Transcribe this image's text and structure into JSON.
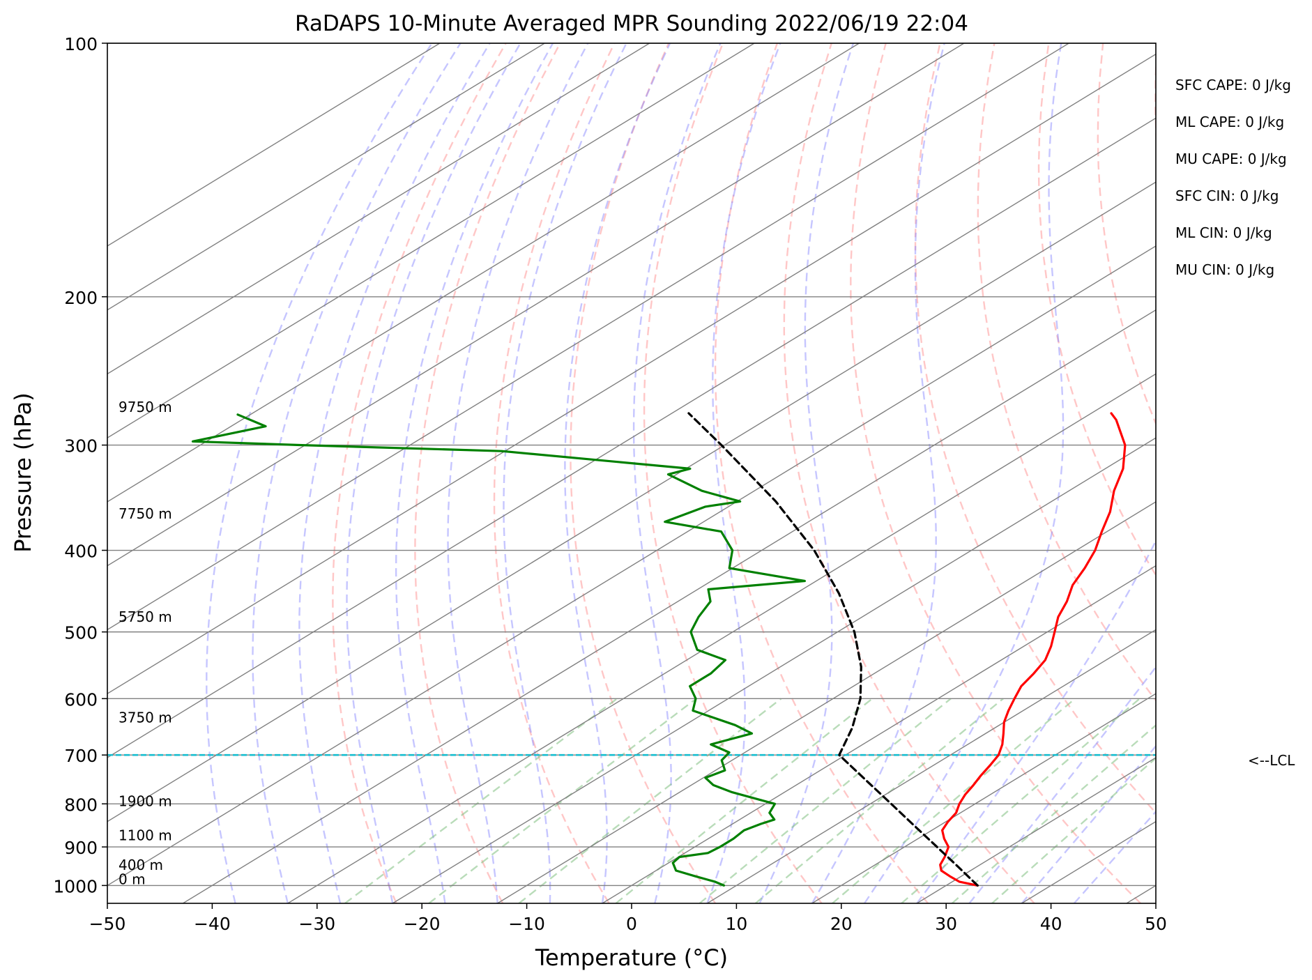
{
  "chart_data": {
    "type": "line",
    "title": "RaDAPS 10-Minute Averaged MPR Sounding 2022/06/19 22:04",
    "xlabel": "Temperature (°C)",
    "ylabel": "Pressure (hPa)",
    "xlim": [
      -50,
      50
    ],
    "ylim": [
      1050,
      100
    ],
    "y_scale": "log",
    "grid": true,
    "x_ticks": [
      "−50",
      "−40",
      "−30",
      "−20",
      "−10",
      "0",
      "10",
      "20",
      "30",
      "40",
      "50"
    ],
    "y_ticks": [
      {
        "p": 100,
        "label": "100"
      },
      {
        "p": 200,
        "label": "200"
      },
      {
        "p": 300,
        "label": "300"
      },
      {
        "p": 400,
        "label": "400"
      },
      {
        "p": 500,
        "label": "500"
      },
      {
        "p": 600,
        "label": "600"
      },
      {
        "p": 700,
        "label": "700"
      },
      {
        "p": 800,
        "label": "800"
      },
      {
        "p": 900,
        "label": "900"
      },
      {
        "p": 1000,
        "label": "1000"
      }
    ],
    "skew_degC_per_log": 57.2,
    "colors": {
      "temperature": "#ff0000",
      "dewpoint": "#008000",
      "parcel": "#000000",
      "lcl_line": "#17becf",
      "isotherm": "#808080",
      "dry_adiabat": "#ff9999",
      "moist_adiabat": "#8080ff",
      "mixing_ratio": "#80c080"
    },
    "series": [
      {
        "key": "temperature",
        "points": [
          [
            1000,
            33.0
          ],
          [
            990,
            30.7
          ],
          [
            975,
            28.9
          ],
          [
            960,
            27.2
          ],
          [
            945,
            26.2
          ],
          [
            925,
            25.4
          ],
          [
            900,
            24.2
          ],
          [
            880,
            22.5
          ],
          [
            860,
            21.0
          ],
          [
            840,
            20.2
          ],
          [
            820,
            19.6
          ],
          [
            800,
            18.5
          ],
          [
            780,
            17.6
          ],
          [
            760,
            16.9
          ],
          [
            740,
            16.1
          ],
          [
            720,
            15.4
          ],
          [
            700,
            14.6
          ],
          [
            680,
            13.3
          ],
          [
            660,
            11.7
          ],
          [
            640,
            10.0
          ],
          [
            620,
            8.6
          ],
          [
            600,
            7.3
          ],
          [
            580,
            6.0
          ],
          [
            560,
            5.2
          ],
          [
            540,
            4.2
          ],
          [
            520,
            2.6
          ],
          [
            500,
            0.7
          ],
          [
            480,
            -1.3
          ],
          [
            460,
            -2.9
          ],
          [
            440,
            -4.9
          ],
          [
            420,
            -6.4
          ],
          [
            400,
            -8.2
          ],
          [
            380,
            -10.5
          ],
          [
            360,
            -12.8
          ],
          [
            340,
            -15.7
          ],
          [
            320,
            -18.3
          ],
          [
            300,
            -21.8
          ],
          [
            280,
            -26.6
          ],
          [
            275,
            -28.1
          ]
        ]
      },
      {
        "key": "dewpoint",
        "points": [
          [
            1000,
            8.8
          ],
          [
            990,
            7.4
          ],
          [
            975,
            4.6
          ],
          [
            960,
            1.9
          ],
          [
            940,
            0.4
          ],
          [
            925,
            0.1
          ],
          [
            915,
            2.2
          ],
          [
            900,
            2.4
          ],
          [
            880,
            2.4
          ],
          [
            860,
            2.1
          ],
          [
            845,
            2.7
          ],
          [
            835,
            3.3
          ],
          [
            820,
            1.8
          ],
          [
            800,
            0.9
          ],
          [
            775,
            -5.0
          ],
          [
            760,
            -7.9
          ],
          [
            745,
            -9.8
          ],
          [
            730,
            -9.1
          ],
          [
            710,
            -11.0
          ],
          [
            695,
            -11.5
          ],
          [
            680,
            -14.5
          ],
          [
            660,
            -12.3
          ],
          [
            645,
            -15.2
          ],
          [
            620,
            -21.5
          ],
          [
            600,
            -23.1
          ],
          [
            580,
            -25.6
          ],
          [
            560,
            -25.6
          ],
          [
            540,
            -26.3
          ],
          [
            525,
            -30.6
          ],
          [
            500,
            -34.0
          ],
          [
            480,
            -35.6
          ],
          [
            460,
            -36.9
          ],
          [
            445,
            -39.0
          ],
          [
            435,
            -31.1
          ],
          [
            420,
            -40.3
          ],
          [
            400,
            -42.8
          ],
          [
            380,
            -46.8
          ],
          [
            370,
            -53.7
          ],
          [
            355,
            -52.2
          ],
          [
            350,
            -49.7
          ],
          [
            340,
            -55.0
          ],
          [
            325,
            -60.8
          ],
          [
            320,
            -59.6
          ],
          [
            305,
            -80.3
          ],
          [
            300,
            -100.3
          ],
          [
            297,
            -111.3
          ],
          [
            285,
            -106.7
          ],
          [
            276,
            -111.2
          ]
        ]
      },
      {
        "key": "parcel",
        "points": [
          [
            1000,
            33.0
          ],
          [
            950,
            28.2
          ],
          [
            900,
            23.1
          ],
          [
            850,
            17.7
          ],
          [
            800,
            12.0
          ],
          [
            750,
            5.9
          ],
          [
            700,
            -0.6
          ],
          [
            650,
            -3.6
          ],
          [
            600,
            -7.4
          ],
          [
            550,
            -12.3
          ],
          [
            500,
            -18.4
          ],
          [
            450,
            -25.9
          ],
          [
            400,
            -35.0
          ],
          [
            350,
            -46.3
          ],
          [
            300,
            -60.3
          ],
          [
            275,
            -68.4
          ]
        ]
      }
    ],
    "height_labels": [
      {
        "p": 1000,
        "text": "0 m"
      },
      {
        "p": 962,
        "text": "400 m"
      },
      {
        "p": 887,
        "text": "1100 m"
      },
      {
        "p": 808,
        "text": "1900 m"
      },
      {
        "p": 643,
        "text": "3750 m"
      },
      {
        "p": 488,
        "text": "5750 m"
      },
      {
        "p": 368,
        "text": "7750 m"
      },
      {
        "p": 275,
        "text": "9750 m"
      }
    ],
    "lcl": {
      "p": 700,
      "label": "<--LCL"
    },
    "indices": [
      "SFC CAPE: 0 J/kg",
      "ML CAPE: 0 J/kg",
      "MU CAPE: 0 J/kg",
      "SFC CIN: 0 J/kg",
      "ML CIN: 0 J/kg",
      "MU CIN: 0 J/kg"
    ]
  }
}
